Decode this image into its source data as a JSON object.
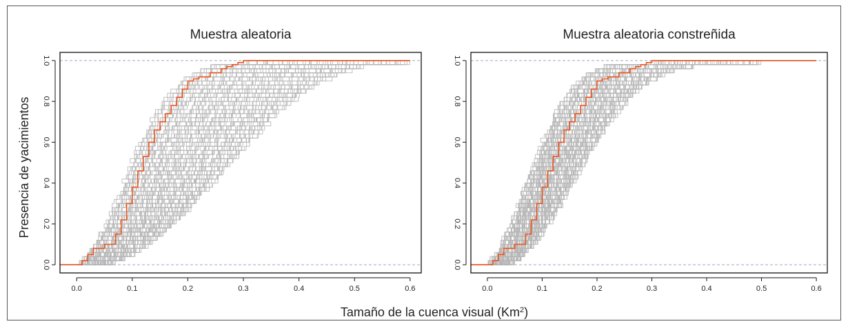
{
  "figure": {
    "xlabel_main": "Tamaño de la cuenca visual (Km",
    "xlabel_sup": "2",
    "xlabel_end": ")",
    "ylabel": "Presencia de yacimientos"
  },
  "chart_data": [
    {
      "type": "line",
      "title": "Muestra aleatoria",
      "xlim": [
        0,
        0.6
      ],
      "ylim": [
        0,
        1
      ],
      "xticks": [
        "0.0",
        "0.1",
        "0.2",
        "0.3",
        "0.4",
        "0.5",
        "0.6"
      ],
      "yticks": [
        "0.0",
        "0.2",
        "0.4",
        "0.6",
        "0.8",
        "1.0"
      ],
      "hlines": [
        0,
        1
      ],
      "colors": {
        "observed": "#e8531f",
        "simulated": "#b5b5b5",
        "reference": "#9aa8c0"
      },
      "observed": {
        "x": [
          -0.03,
          0.0,
          0.01,
          0.02,
          0.03,
          0.05,
          0.07,
          0.08,
          0.09,
          0.1,
          0.11,
          0.12,
          0.13,
          0.14,
          0.15,
          0.16,
          0.17,
          0.18,
          0.19,
          0.2,
          0.21,
          0.22,
          0.24,
          0.26,
          0.27,
          0.28,
          0.29,
          0.3,
          0.35,
          0.45,
          0.55,
          0.6
        ],
        "y": [
          0.0,
          0.0,
          0.02,
          0.05,
          0.08,
          0.1,
          0.15,
          0.22,
          0.3,
          0.38,
          0.46,
          0.53,
          0.6,
          0.66,
          0.7,
          0.74,
          0.78,
          0.82,
          0.86,
          0.9,
          0.91,
          0.92,
          0.94,
          0.96,
          0.97,
          0.98,
          0.99,
          1.0,
          1.0,
          1.0,
          1.0,
          1.0
        ]
      },
      "simulation_envelope": {
        "earliest_x": [
          0.0,
          0.02,
          0.04,
          0.06,
          0.08,
          0.1,
          0.12,
          0.14,
          0.16,
          0.18,
          0.2,
          0.22,
          0.24,
          0.26,
          0.28,
          0.3
        ],
        "earliest_y": [
          0.0,
          0.06,
          0.14,
          0.24,
          0.38,
          0.52,
          0.64,
          0.74,
          0.83,
          0.89,
          0.93,
          0.96,
          0.98,
          0.99,
          1.0,
          1.0
        ],
        "latest_x": [
          0.0,
          0.04,
          0.08,
          0.12,
          0.16,
          0.2,
          0.24,
          0.28,
          0.32,
          0.36,
          0.4,
          0.44,
          0.48,
          0.52,
          0.56,
          0.6
        ],
        "latest_y": [
          0.0,
          0.0,
          0.03,
          0.09,
          0.17,
          0.27,
          0.39,
          0.51,
          0.63,
          0.74,
          0.83,
          0.9,
          0.95,
          0.98,
          0.995,
          1.0
        ]
      }
    },
    {
      "type": "line",
      "title": "Muestra aleatoria constreñida",
      "xlim": [
        0,
        0.6
      ],
      "ylim": [
        0,
        1
      ],
      "xticks": [
        "0.0",
        "0.1",
        "0.2",
        "0.3",
        "0.4",
        "0.5",
        "0.6"
      ],
      "yticks": [
        "0.0",
        "0.2",
        "0.4",
        "0.6",
        "0.8",
        "1.0"
      ],
      "hlines": [
        0,
        1
      ],
      "colors": {
        "observed": "#e8531f",
        "simulated": "#b5b5b5",
        "reference": "#9aa8c0"
      },
      "observed": {
        "x": [
          -0.03,
          0.0,
          0.01,
          0.02,
          0.03,
          0.05,
          0.07,
          0.08,
          0.09,
          0.1,
          0.11,
          0.12,
          0.13,
          0.14,
          0.15,
          0.16,
          0.17,
          0.18,
          0.19,
          0.2,
          0.21,
          0.22,
          0.24,
          0.26,
          0.27,
          0.28,
          0.29,
          0.3,
          0.35,
          0.45,
          0.55,
          0.6
        ],
        "y": [
          0.0,
          0.0,
          0.02,
          0.05,
          0.08,
          0.1,
          0.15,
          0.22,
          0.3,
          0.38,
          0.46,
          0.53,
          0.6,
          0.66,
          0.7,
          0.74,
          0.78,
          0.82,
          0.86,
          0.9,
          0.91,
          0.92,
          0.94,
          0.96,
          0.97,
          0.98,
          0.99,
          1.0,
          1.0,
          1.0,
          1.0,
          1.0
        ]
      },
      "simulation_envelope": {
        "earliest_x": [
          0.0,
          0.02,
          0.04,
          0.06,
          0.08,
          0.1,
          0.12,
          0.14,
          0.16,
          0.18,
          0.2,
          0.22,
          0.24,
          0.26,
          0.28,
          0.3
        ],
        "earliest_y": [
          0.0,
          0.08,
          0.18,
          0.32,
          0.47,
          0.61,
          0.73,
          0.82,
          0.89,
          0.94,
          0.97,
          0.99,
          1.0,
          1.0,
          1.0,
          1.0
        ],
        "latest_x": [
          0.0,
          0.03,
          0.06,
          0.09,
          0.12,
          0.15,
          0.18,
          0.21,
          0.24,
          0.27,
          0.3,
          0.33,
          0.36,
          0.4,
          0.45,
          0.5
        ],
        "latest_y": [
          0.0,
          0.0,
          0.04,
          0.12,
          0.24,
          0.38,
          0.52,
          0.65,
          0.76,
          0.85,
          0.91,
          0.95,
          0.97,
          0.99,
          0.998,
          1.0
        ]
      }
    }
  ]
}
